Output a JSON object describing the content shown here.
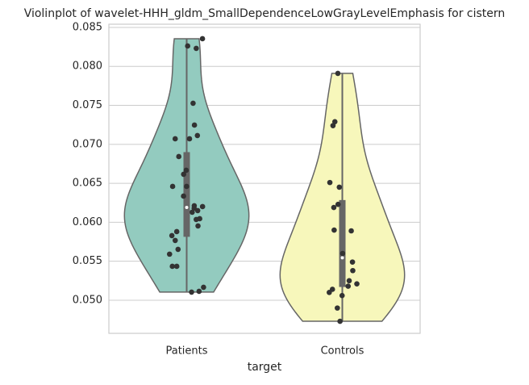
{
  "chart_data": {
    "type": "violin",
    "title": "Violinplot of wavelet-HHH_gldm_SmallDependenceLowGrayLevelEmphasis for cistern",
    "x_label": "target",
    "categories": [
      "Patients",
      "Controls"
    ],
    "series": [
      {
        "name": "Patients",
        "color": "#93cbbf",
        "values": [
          0.08355,
          0.08262,
          0.08231,
          0.07527,
          0.07247,
          0.07113,
          0.07071,
          0.07071,
          0.06843,
          0.06667,
          0.06616,
          0.0646,
          0.0646,
          0.06336,
          0.06212,
          0.06201,
          0.06181,
          0.0615,
          0.06129,
          0.06046,
          0.06036,
          0.05953,
          0.0588,
          0.05829,
          0.05767,
          0.05653,
          0.05591,
          0.05435,
          0.05435,
          0.05166,
          0.05114,
          0.05104
        ]
      },
      {
        "name": "Controls",
        "color": "#f7f7bb",
        "values": [
          0.0791,
          0.0729,
          0.0724,
          0.0651,
          0.0645,
          0.0623,
          0.0619,
          0.059,
          0.0589,
          0.056,
          0.0549,
          0.0538,
          0.0525,
          0.0521,
          0.0518,
          0.0514,
          0.051,
          0.0506,
          0.049,
          0.0473
        ]
      }
    ],
    "ylim": [
      0.04575,
      0.08541
    ],
    "yticks": [
      {
        "value": 0.05,
        "label": "0.050"
      },
      0.055,
      {
        "value": 0.06,
        "label": "0.060"
      },
      0.065,
      {
        "value": 0.07,
        "label": "0.070"
      },
      0.075,
      {
        "value": 0.08,
        "label": "0.080"
      },
      0.085
    ],
    "grid": true
  }
}
